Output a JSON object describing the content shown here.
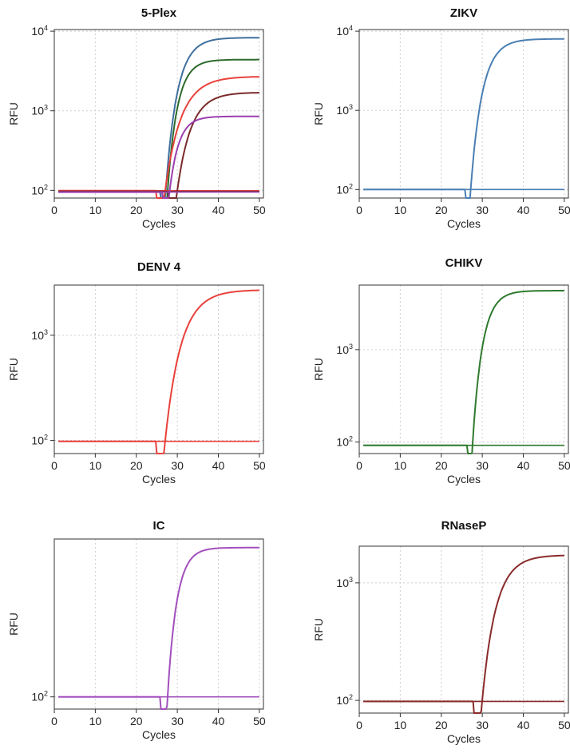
{
  "chart_data": [
    {
      "type": "line",
      "title": "5-Plex",
      "xlabel": "Cycles",
      "ylabel": "RFU",
      "y_scale": "log",
      "xlim": [
        0,
        51
      ],
      "ylim": [
        80,
        10500
      ],
      "x_ticks": [
        "0",
        "10",
        "20",
        "30",
        "40",
        "50"
      ],
      "y_ticks": [
        {
          "base": "10",
          "exp": "2",
          "value": 100
        },
        {
          "base": "10",
          "exp": "3",
          "value": 1000
        },
        {
          "base": "10",
          "exp": "4",
          "value": 10000
        }
      ],
      "grid": true,
      "series": [
        {
          "color": "#3f6f9f",
          "baseline": 97,
          "plateau": 8300,
          "onset": 26,
          "rate": 0.36,
          "rise_start": 26
        },
        {
          "color": "#2d6b2d",
          "baseline": 97,
          "plateau": 4400,
          "onset": 26.5,
          "rate": 0.42,
          "rise_start": 26.5
        },
        {
          "color": "#e8413c",
          "baseline": 99,
          "plateau": 2700,
          "onset": 25,
          "rate": 0.26,
          "rise_start": 25
        },
        {
          "color": "#7a2a2a",
          "baseline": 97,
          "plateau": 1700,
          "onset": 28,
          "rate": 0.3,
          "rise_start": 28
        },
        {
          "color": "#9b3fb0",
          "baseline": 95,
          "plateau": 850,
          "onset": 26.5,
          "rate": 0.45,
          "rise_start": 26.5
        }
      ]
    },
    {
      "type": "line",
      "title": "ZIKV",
      "xlabel": "Cycles",
      "ylabel": "RFU",
      "y_scale": "log",
      "xlim": [
        0,
        51
      ],
      "ylim": [
        78,
        10500
      ],
      "x_ticks": [
        "0",
        "10",
        "20",
        "30",
        "40",
        "50"
      ],
      "y_ticks": [
        {
          "base": "10",
          "exp": "2",
          "value": 100
        },
        {
          "base": "10",
          "exp": "3",
          "value": 1000
        },
        {
          "base": "10",
          "exp": "4",
          "value": 10000
        }
      ],
      "grid": true,
      "series": [
        {
          "color": "#4a7fb3",
          "baseline": 100,
          "plateau": 8000,
          "onset": 26,
          "rate": 0.36,
          "rise_start": 26
        }
      ]
    },
    {
      "type": "line",
      "title": "DENV 4",
      "xlabel": "Cycles",
      "ylabel": "RFU",
      "y_scale": "log",
      "xlim": [
        0,
        51
      ],
      "ylim": [
        75,
        3000
      ],
      "x_ticks": [
        "0",
        "10",
        "20",
        "30",
        "40",
        "50"
      ],
      "y_ticks": [
        {
          "base": "10",
          "exp": "2",
          "value": 100
        },
        {
          "base": "10",
          "exp": "3",
          "value": 1000
        }
      ],
      "grid": true,
      "series": [
        {
          "color": "#e8413c",
          "baseline": 98,
          "plateau": 2700,
          "onset": 25,
          "rate": 0.26,
          "rise_start": 25
        }
      ]
    },
    {
      "type": "line",
      "title": "CHIKV",
      "xlabel": "Cycles",
      "ylabel": "RFU",
      "y_scale": "log",
      "xlim": [
        0,
        51
      ],
      "ylim": [
        75,
        5000
      ],
      "x_ticks": [
        "0",
        "10",
        "20",
        "30",
        "40",
        "50"
      ],
      "y_ticks": [
        {
          "base": "10",
          "exp": "2",
          "value": 100
        },
        {
          "base": "10",
          "exp": "3",
          "value": 1000
        }
      ],
      "grid": true,
      "series": [
        {
          "color": "#2f7a2f",
          "baseline": 92,
          "plateau": 4350,
          "onset": 26.5,
          "rate": 0.42,
          "rise_start": 26.5
        }
      ]
    },
    {
      "type": "line",
      "title": "IC",
      "xlabel": "Cycles",
      "ylabel": "RFU",
      "y_scale": "log",
      "xlim": [
        0,
        51
      ],
      "ylim": [
        84,
        950
      ],
      "x_ticks": [
        "0",
        "10",
        "20",
        "30",
        "40",
        "50"
      ],
      "y_ticks": [
        {
          "base": "10",
          "exp": "2",
          "value": 100
        }
      ],
      "grid": true,
      "series": [
        {
          "color": "#a24fbd",
          "baseline": 100,
          "plateau": 840,
          "onset": 26,
          "rate": 0.45,
          "rise_start": 26
        }
      ]
    },
    {
      "type": "line",
      "title": "RNaseP",
      "xlabel": "Cycles",
      "ylabel": "RFU",
      "y_scale": "log",
      "xlim": [
        0,
        51
      ],
      "ylim": [
        78,
        2050
      ],
      "x_ticks": [
        "0",
        "10",
        "20",
        "30",
        "40",
        "50"
      ],
      "y_ticks": [
        {
          "base": "10",
          "exp": "2",
          "value": 100
        },
        {
          "base": "10",
          "exp": "3",
          "value": 1000
        }
      ],
      "grid": true,
      "series": [
        {
          "color": "#8a2b2b",
          "baseline": 98,
          "plateau": 1720,
          "onset": 28,
          "rate": 0.3,
          "rise_start": 28
        }
      ]
    }
  ]
}
